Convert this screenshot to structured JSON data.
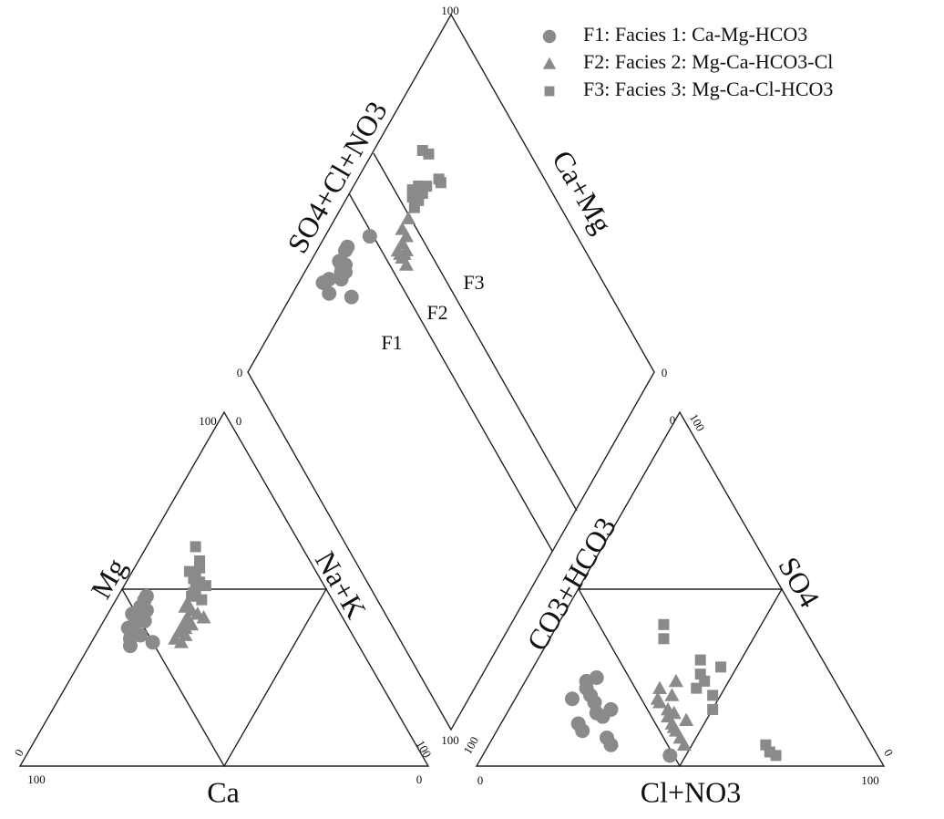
{
  "chart_data": {
    "type": "piper",
    "color": "#8a8a8a",
    "legend_position": "upper right",
    "axes": [
      {
        "label": "Ca",
        "ticks": [
          100,
          0
        ]
      },
      {
        "label": "Mg",
        "ticks": [
          0,
          100
        ]
      },
      {
        "label": "Na+K",
        "ticks": [
          0,
          100
        ]
      },
      {
        "label": "CO3+HCO3",
        "ticks": [
          100,
          0
        ]
      },
      {
        "label": "SO4",
        "ticks": [
          100,
          0
        ]
      },
      {
        "label": "Cl+NO3",
        "ticks": [
          0,
          100
        ]
      },
      {
        "label": "SO4+Cl+NO3",
        "ticks": [
          0,
          100
        ]
      },
      {
        "label": "Ca+Mg",
        "ticks": [
          0,
          100
        ]
      }
    ],
    "annotations": [
      "F1",
      "F2",
      "F3"
    ],
    "series": [
      {
        "name": "F1: Facies 1: Ca-Mg-HCO3",
        "marker": "circle",
        "Ca": [
          50,
          52,
          48,
          47,
          53,
          55,
          49,
          51,
          46,
          54,
          50,
          45,
          56,
          52
        ],
        "Mg": [
          42,
          40,
          45,
          44,
          38,
          36,
          41,
          43,
          47,
          39,
          35,
          48,
          34,
          37
        ],
        "ClNO3": [
          18,
          20,
          16,
          22,
          19,
          15,
          24,
          21,
          17,
          25,
          28,
          14,
          30,
          46
        ],
        "SO4": [
          20,
          18,
          22,
          15,
          12,
          24,
          14,
          10,
          25,
          16,
          8,
          19,
          6,
          3
        ]
      },
      {
        "name": "F2: Facies 2: Mg-Ca-HCO3-Cl",
        "marker": "triangle",
        "Ca": [
          40,
          38,
          42,
          36,
          44,
          39,
          35,
          41,
          37,
          43,
          34,
          38,
          40,
          36
        ],
        "Mg": [
          40,
          42,
          38,
          44,
          36,
          41,
          43,
          37,
          45,
          35,
          42,
          40,
          39,
          46
        ],
        "ClNO3": [
          36,
          40,
          38,
          42,
          34,
          44,
          39,
          46,
          37,
          41,
          48,
          35,
          43,
          45
        ],
        "SO4": [
          18,
          14,
          20,
          12,
          22,
          10,
          16,
          8,
          24,
          15,
          6,
          19,
          11,
          13
        ]
      },
      {
        "name": "F3: Facies 3: Mg-Ca-Cl-HCO3",
        "marker": "square",
        "Ca": [
          32,
          30,
          34,
          28,
          31,
          29,
          33,
          27,
          30,
          32,
          26,
          31
        ],
        "Mg": [
          50,
          52,
          48,
          56,
          53,
          51,
          49,
          58,
          54,
          47,
          62,
          55
        ],
        "ClNO3": [
          26,
          28,
          40,
          42,
          44,
          46,
          48,
          50,
          43,
          68,
          70,
          72
        ],
        "SO4": [
          40,
          36,
          30,
          26,
          24,
          28,
          20,
          16,
          22,
          6,
          4,
          3
        ]
      }
    ]
  }
}
